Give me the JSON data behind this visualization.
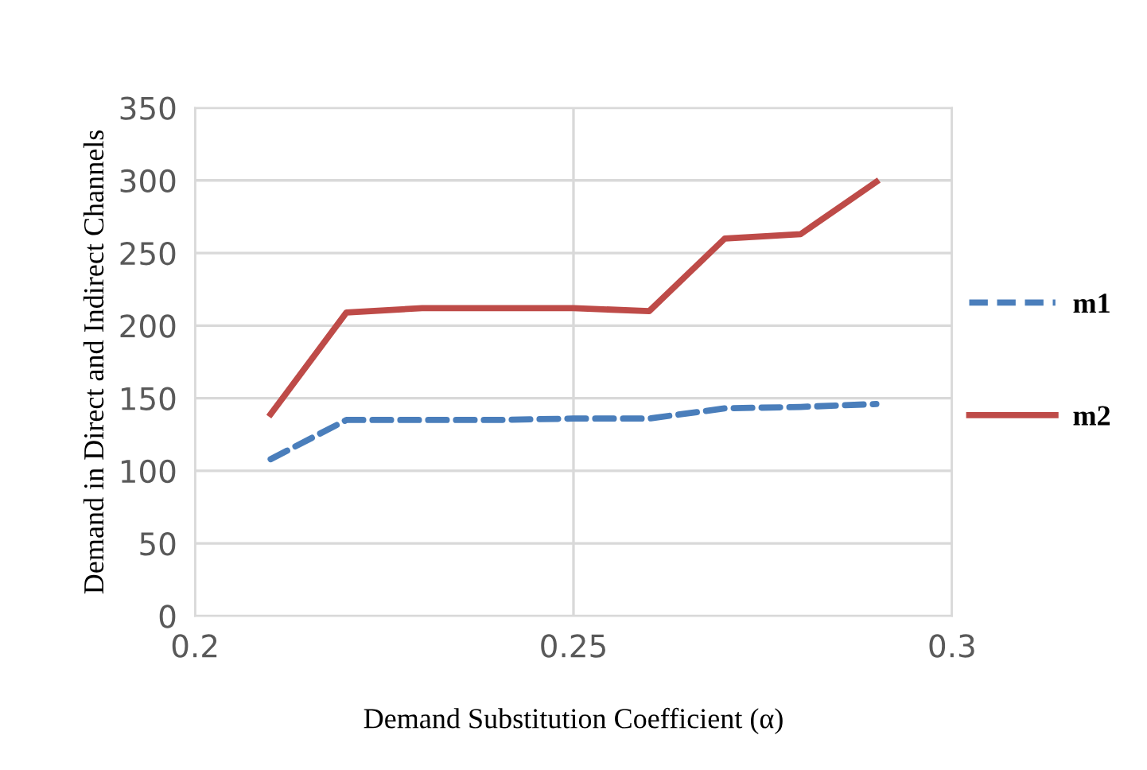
{
  "chart_data": {
    "type": "line",
    "xlabel": "Demand Substitution Coefficient (α)",
    "ylabel": "Demand in Direct and Indirect Channels",
    "x": [
      0.21,
      0.22,
      0.23,
      0.24,
      0.25,
      0.26,
      0.27,
      0.28,
      0.29
    ],
    "series": [
      {
        "name": "m1",
        "color": "#4a7ebb",
        "line_style": "dashed",
        "values": [
          108,
          135,
          135,
          135,
          136,
          136,
          143,
          144,
          146
        ]
      },
      {
        "name": "m2",
        "color": "#be4b48",
        "line_style": "solid",
        "values": [
          139,
          209,
          212,
          212,
          212,
          210,
          260,
          263,
          299
        ]
      }
    ],
    "xlim": [
      0.2,
      0.3
    ],
    "xticks": [
      0.2,
      0.25,
      0.3
    ],
    "ylim": [
      0,
      350
    ],
    "yticks": [
      0,
      50,
      100,
      150,
      200,
      250,
      300,
      350
    ],
    "grid": true,
    "legend": "right",
    "marker": "none"
  }
}
